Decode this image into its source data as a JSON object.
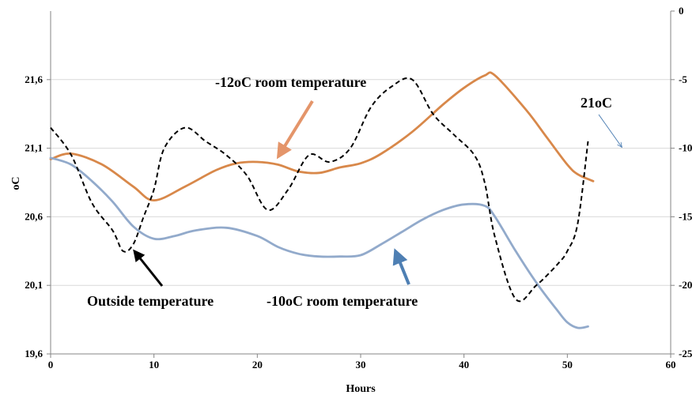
{
  "chart_data": {
    "type": "line",
    "xlabel": "Hours",
    "ylabel": "oC",
    "xlim": [
      0,
      60
    ],
    "ylim": [
      19.6,
      22.1
    ],
    "y2lim": [
      -25,
      0
    ],
    "x_ticks": [
      0,
      10,
      20,
      30,
      40,
      50,
      60
    ],
    "y_ticks": [
      "19,6",
      "20,1",
      "20,6",
      "21,1",
      "21,6"
    ],
    "y2_ticks": [
      0,
      -5,
      -10,
      -15,
      -20,
      -25
    ],
    "grid": "horizontal",
    "series": [
      {
        "name": "-12oC room temperature",
        "axis": "left",
        "color": "#D8884A",
        "style": "solid",
        "x": [
          0,
          2,
          5,
          8,
          10,
          13,
          16,
          18,
          20,
          22,
          24,
          26,
          28,
          30,
          32,
          35,
          38,
          40,
          42,
          43,
          46,
          48,
          50,
          51,
          52.5
        ],
        "y": [
          21.02,
          21.06,
          20.98,
          20.82,
          20.72,
          20.82,
          20.94,
          20.99,
          21.0,
          20.98,
          20.93,
          20.92,
          20.96,
          20.99,
          21.06,
          21.22,
          21.42,
          21.54,
          21.63,
          21.63,
          21.38,
          21.18,
          20.98,
          20.91,
          20.86
        ]
      },
      {
        "name": "-10oC room temperature",
        "axis": "left",
        "color": "#92AACB",
        "style": "solid",
        "x": [
          0,
          2,
          4,
          6,
          8,
          10,
          12,
          14,
          17,
          20,
          22,
          24,
          26,
          28,
          30,
          32,
          34,
          36,
          38,
          40,
          42,
          43,
          45,
          47,
          49,
          50,
          51,
          52
        ],
        "y": [
          21.03,
          20.98,
          20.86,
          20.71,
          20.53,
          20.44,
          20.46,
          20.5,
          20.52,
          20.46,
          20.38,
          20.33,
          20.31,
          20.31,
          20.32,
          20.4,
          20.49,
          20.58,
          20.65,
          20.69,
          20.68,
          20.6,
          20.35,
          20.12,
          19.92,
          19.83,
          19.79,
          19.8
        ]
      },
      {
        "name": "Outside temperature",
        "axis": "right",
        "color": "#000000",
        "style": "dashed",
        "x": [
          0,
          2,
          4,
          6,
          7,
          8,
          9,
          10,
          11,
          13,
          15,
          17,
          19,
          21,
          23,
          25,
          27,
          29,
          31,
          33,
          35,
          37,
          39,
          41,
          42,
          43,
          45,
          47,
          49,
          50,
          51,
          52
        ],
        "y": [
          -8.5,
          -10.5,
          -14.0,
          -16.0,
          -17.5,
          -17.0,
          -15.0,
          -13.0,
          -10.0,
          -8.5,
          -9.5,
          -10.5,
          -12.0,
          -14.5,
          -13.0,
          -10.5,
          -11.0,
          -10.0,
          -7.0,
          -5.5,
          -5.0,
          -7.5,
          -9.0,
          -10.5,
          -12.5,
          -16.5,
          -21.0,
          -20.0,
          -18.5,
          -17.5,
          -15.5,
          -9.5
        ]
      }
    ],
    "annotations": [
      {
        "text": "-12oC room temperature",
        "series": "-12oC room temperature"
      },
      {
        "text": "-10oC room temperature",
        "series": "-10oC room temperature"
      },
      {
        "text": "Outside temperature",
        "series": "Outside temperature"
      },
      {
        "text": "21oC",
        "series": "-12oC room temperature"
      }
    ]
  }
}
